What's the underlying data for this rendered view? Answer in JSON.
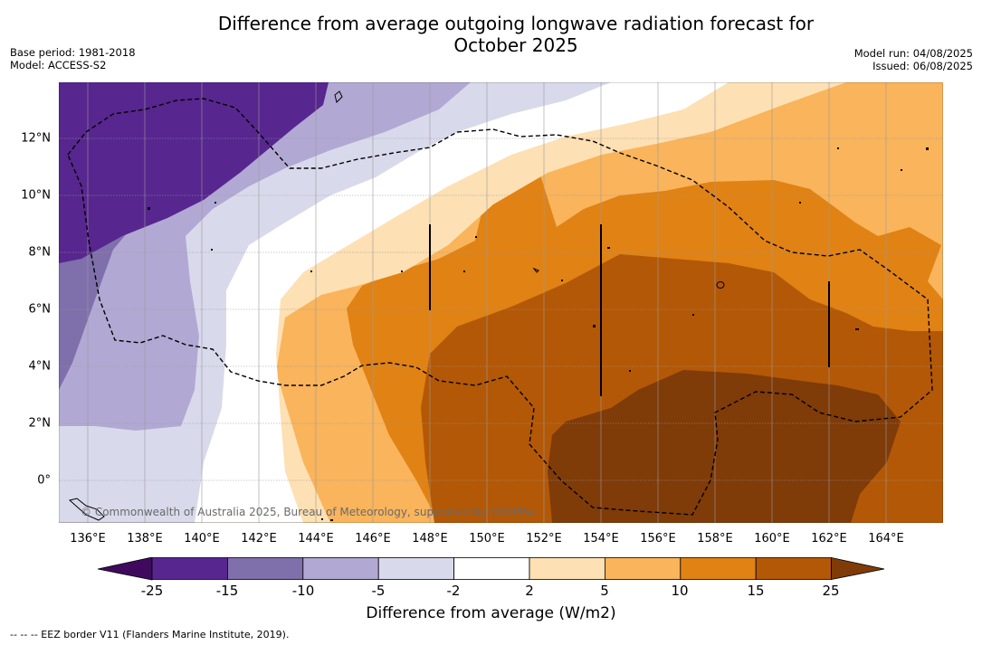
{
  "header": {
    "title_line1": "Difference from average outgoing longwave radiation forecast for",
    "title_line2": "October 2025",
    "base_period": "Base period: 1981-2018",
    "model": "Model: ACCESS-S2",
    "model_run": "Model run: 04/08/2025",
    "issued": "Issued: 06/08/2025"
  },
  "map": {
    "copyright": "© Commonwealth of Australia 2025, Bureau of Meteorology, supported by COSPPac",
    "lat_labels": [
      "12°N",
      "10°N",
      "8°N",
      "6°N",
      "4°N",
      "2°N",
      "0°"
    ],
    "lon_labels": [
      "136°E",
      "138°E",
      "140°E",
      "142°E",
      "144°E",
      "146°E",
      "148°E",
      "150°E",
      "152°E",
      "154°E",
      "156°E",
      "158°E",
      "160°E",
      "162°E",
      "164°E"
    ],
    "palette": [
      "#3f0a5e",
      "#57268f",
      "#7f6fab",
      "#b1a9d3",
      "#d9d9ec",
      "#ffffff",
      "#fde0b3",
      "#f9b45c",
      "#e08214",
      "#b35806",
      "#7f3b08"
    ],
    "border_color": "#000000"
  },
  "colorbar": {
    "ticks": [
      "-25",
      "-15",
      "-10",
      "-5",
      "-2",
      "2",
      "5",
      "10",
      "15",
      "25"
    ],
    "label": "Difference from average (W/m2)"
  },
  "footnote": "--  --  -- EEZ border V11 (Flanders Marine Institute, 2019)."
}
